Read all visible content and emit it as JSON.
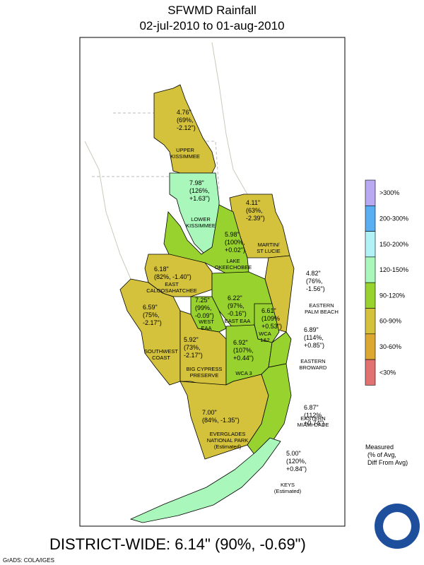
{
  "title": "SFWMD Rainfall",
  "subtitle": "02-jul-2010 to 01-aug-2010",
  "regions": [
    {
      "value": [
        "4.76\"",
        "(69%,",
        "-2.12\")"
      ],
      "name": [
        "UPPER",
        "KISSIMMEE"
      ],
      "color": "#d4c23c"
    },
    {
      "value": [
        "7.98\"",
        "(126%,",
        "+1.63\")"
      ],
      "name": [
        "LOWER",
        "KISSIMMEE"
      ],
      "color": "#aaf7bc"
    },
    {
      "value": [
        "4.11\"",
        "(63%,",
        "-2.39\")"
      ],
      "name": [
        "MARTIN/",
        "ST LUCIE"
      ],
      "color": "#d4c23c"
    },
    {
      "value": [
        "5.98\"",
        "(100%,",
        "+0.02\")"
      ],
      "name": [
        "LAKE",
        "OKEECHOBEE"
      ],
      "color": "#98d22e"
    },
    {
      "value": [
        "6.18\"",
        "(82%, -1.40\")"
      ],
      "name": [
        "EAST",
        "CALOOSAHATCHEE"
      ],
      "color": "#d4c23c"
    },
    {
      "value": [
        "6.59\"",
        "(75%,",
        "-2.17\")"
      ],
      "name": [
        "SOUTHWEST",
        "COAST"
      ],
      "color": "#d4c23c"
    },
    {
      "value": [
        "6.22\"",
        "(97%,",
        "-0.16\")"
      ],
      "name": [
        "EAST EAA"
      ],
      "color": "#98d22e"
    },
    {
      "value": [
        "4.82\"",
        "(76%,",
        "-1.56\")"
      ],
      "name": [
        "EASTERN",
        "PALM BEACH"
      ],
      "color": "#d4c23c"
    },
    {
      "value": [
        "7.25\"",
        "(99%,",
        "-0.09\")"
      ],
      "name": [
        "WEST",
        "EAA"
      ],
      "color": "#98d22e"
    },
    {
      "value": [
        "6.61\"",
        "(109%",
        "+0.53\")"
      ],
      "name": [
        "WCA",
        "1&2"
      ],
      "color": "#98d22e"
    },
    {
      "value": [
        "5.92\"",
        "(73%,",
        "-2.17\")"
      ],
      "name": [
        "BIG CYPRESS",
        "PRESERVE"
      ],
      "color": "#d4c23c"
    },
    {
      "value": [
        "6.92\"",
        "(107%,",
        "+0.44\")"
      ],
      "name": [
        "WCA 3"
      ],
      "color": "#98d22e"
    },
    {
      "value": [
        "7.00\"",
        "(84%, -1.35\")"
      ],
      "name": [
        "EVERGLADES",
        "NATIONAL PARK",
        "(Estimated)"
      ],
      "color": "#d4c23c"
    },
    {
      "value": [
        "6.89\"",
        "(114%,",
        "+0.85\")"
      ],
      "name": [
        "EASTERN",
        "BROWARD"
      ],
      "color": "#98d22e"
    },
    {
      "value": [
        "6.87\"",
        "(112%,",
        "+0.74\")"
      ],
      "name": [
        "EASTERN",
        "MIAMI-DADE"
      ],
      "color": "#98d22e"
    },
    {
      "value": [
        "5.00\"",
        "(120%,",
        "+0.84\")"
      ],
      "name": [
        "KEYS",
        "(Estimated)"
      ],
      "color": "#aaf7bc"
    }
  ],
  "legend": [
    {
      "label": ">300%",
      "color": "#b9a9f2"
    },
    {
      "label": "200-300%",
      "color": "#5aaef2"
    },
    {
      "label": "150-200%",
      "color": "#b2f2f6"
    },
    {
      "label": "120-150%",
      "color": "#aaf7bc"
    },
    {
      "label": "90-120%",
      "color": "#98d22e"
    },
    {
      "label": "60-90%",
      "color": "#d4c23c"
    },
    {
      "label": "30-60%",
      "color": "#dca832"
    },
    {
      "label": "<30%",
      "color": "#e27272"
    }
  ],
  "note": [
    "Measured",
    "(% of Avg,",
    "Diff From Avg)"
  ],
  "district_wide": "DISTRICT-WIDE: 6.14\"  (90%, -0.69\")",
  "credit": "GrADS: COLA/IGES"
}
